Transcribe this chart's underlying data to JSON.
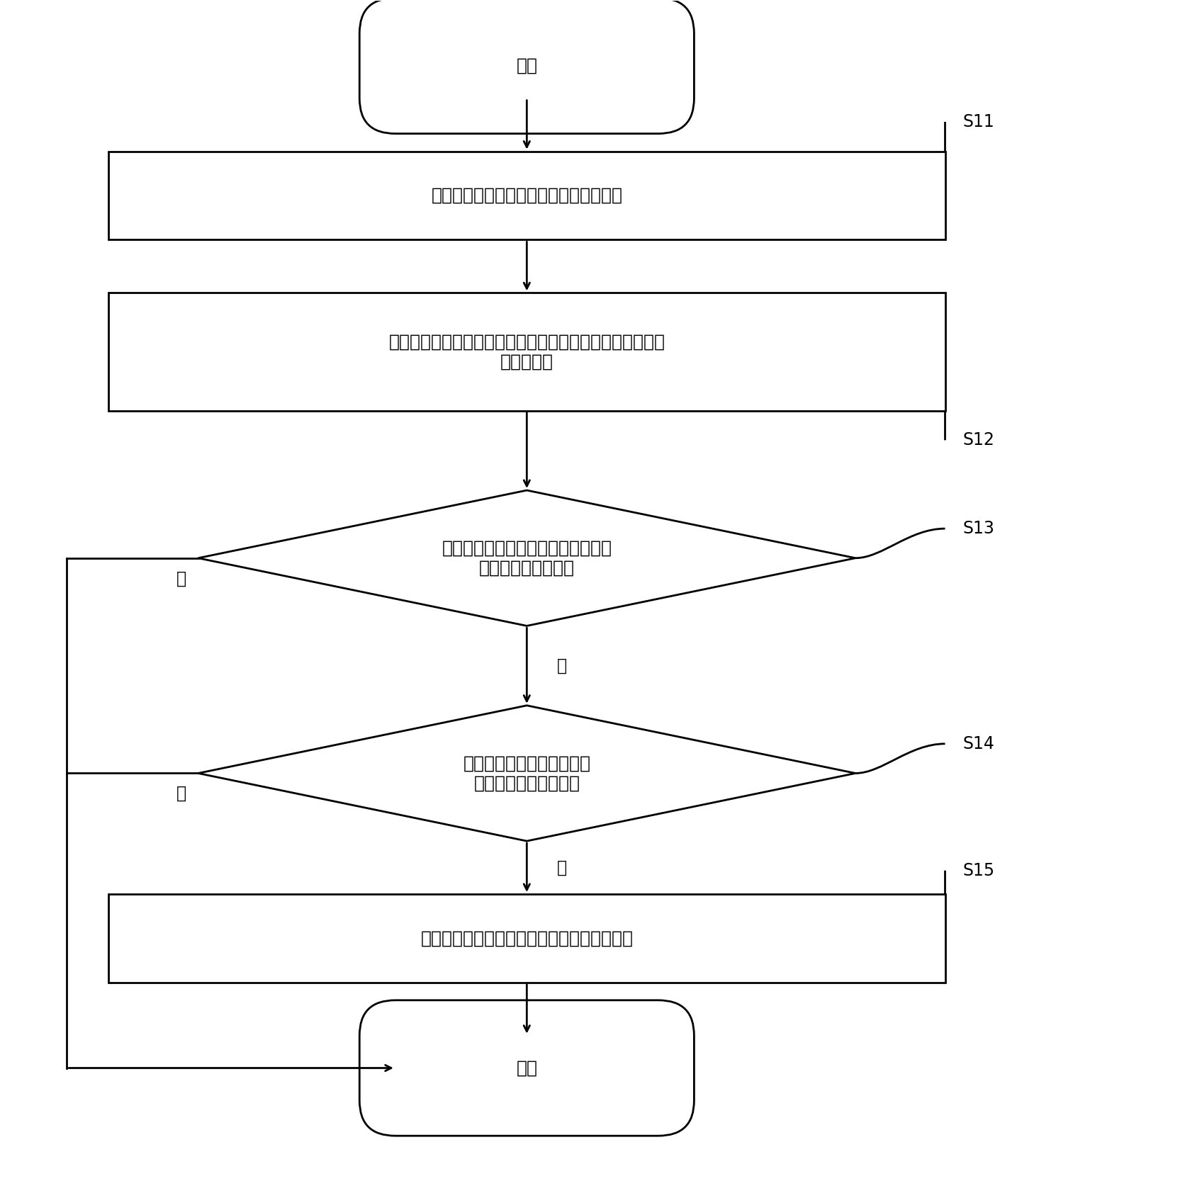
{
  "bg_color": "#ffffff",
  "line_color": "#000000",
  "text_color": "#000000",
  "start_text": "开始",
  "end_text": "结束",
  "s11_text": "获取包含目标人物的图像数据或视频数据",
  "s12_text": "确定图像数据或视频数据中目标人物，并标记出目标人物的\n人体关键点",
  "s13_text": "根据人体关键点确定目标人物的动作\n是否为类打电话动作",
  "s14_text": "识别图像数据或视频数据中\n目标人物是否手持电话",
  "s15_text": "输出目标人物的工作为打电话动作的识别结果",
  "yes_text": "是",
  "no_text": "否",
  "lw": 2.0,
  "font_size_main": 18,
  "font_size_label": 17,
  "font_size_yn": 17
}
